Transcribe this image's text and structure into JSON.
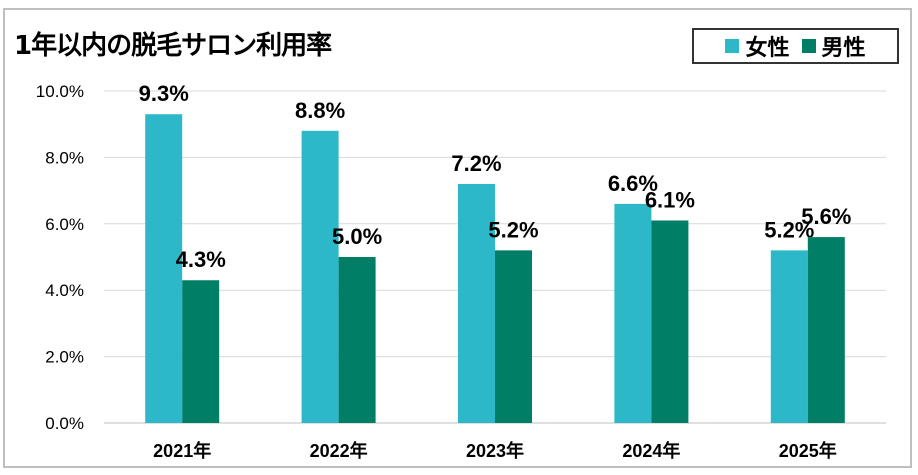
{
  "chart_data": {
    "type": "bar",
    "title": "1年以内の脱毛サロン利用率",
    "categories": [
      "2021年",
      "2022年",
      "2023年",
      "2024年",
      "2025年"
    ],
    "series": [
      {
        "name": "女性",
        "values": [
          9.3,
          8.8,
          7.2,
          6.6,
          5.2
        ],
        "labels": [
          "9.3%",
          "8.8%",
          "7.2%",
          "6.6%",
          "5.2%"
        ],
        "color": "#2cb8c8"
      },
      {
        "name": "男性",
        "values": [
          4.3,
          5.0,
          5.2,
          6.1,
          5.6
        ],
        "labels": [
          "4.3%",
          "5.0%",
          "5.2%",
          "6.1%",
          "5.6%"
        ],
        "color": "#007f66"
      }
    ],
    "ylim": [
      0,
      10
    ],
    "yticks": [
      "0.0%",
      "2.0%",
      "4.0%",
      "6.0%",
      "8.0%",
      "10.0%"
    ],
    "grid": true,
    "legend_position": "top-right"
  }
}
